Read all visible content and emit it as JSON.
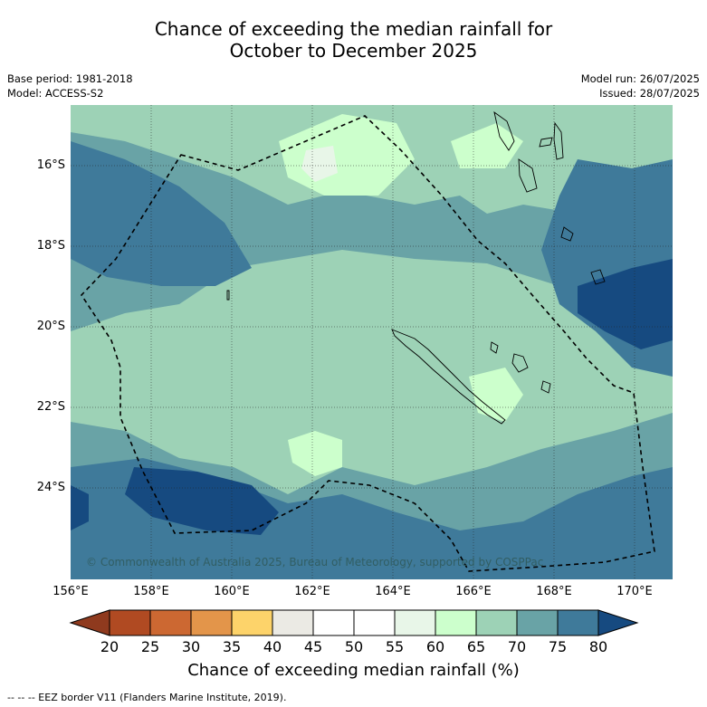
{
  "title": {
    "line1": "Chance of exceeding the median rainfall for",
    "line2": "October to December 2025"
  },
  "meta": {
    "base_period": "Base period: 1981-2018",
    "model": "Model: ACCESS-S2",
    "model_run": "Model run: 26/07/2025",
    "issued": "Issued: 28/07/2025"
  },
  "map": {
    "lat_labels": [
      "16°S",
      "18°S",
      "20°S",
      "22°S",
      "24°S"
    ],
    "lon_labels": [
      "156°E",
      "158°E",
      "160°E",
      "162°E",
      "164°E",
      "166°E",
      "168°E",
      "170°E"
    ],
    "copyright": "© Commonwealth of Australia 2025, Bureau of Meteorology, supported by COSPPac"
  },
  "colorbar": {
    "ticks": [
      "20",
      "25",
      "30",
      "35",
      "40",
      "45",
      "50",
      "55",
      "60",
      "65",
      "70",
      "75",
      "80"
    ],
    "colors": [
      "#8f3a1e",
      "#b04a22",
      "#cc6832",
      "#e3954a",
      "#fdd36a",
      "#ebeae4",
      "#ffffff",
      "#ffffff",
      "#e8f6e8",
      "#ccffcc",
      "#9dd2b6",
      "#69a3a6",
      "#3f7a9a",
      "#164a80"
    ],
    "label": "Chance of exceeding median rainfall (%)"
  },
  "footnote": "--  --  -- EEZ border V11 (Flanders Marine Institute, 2019)."
}
